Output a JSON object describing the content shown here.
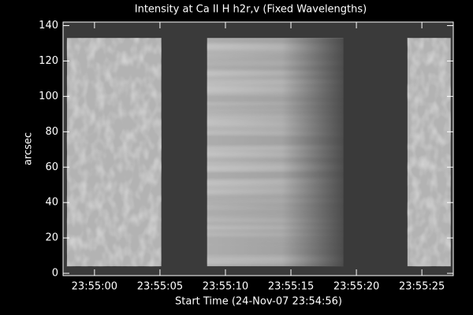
{
  "chart_data": {
    "type": "image",
    "title": "Intensity at Ca II H h2r,v (Fixed Wavelengths)",
    "xlabel": "Start Time (24-Nov-07 23:54:56)",
    "ylabel": "arcsec",
    "xlim": [
      1.6,
      31.4
    ],
    "xticks": [
      {
        "value": 4,
        "label": "23:55:00"
      },
      {
        "value": 9,
        "label": "23:55:05"
      },
      {
        "value": 14,
        "label": "23:55:10"
      },
      {
        "value": 19,
        "label": "23:55:15"
      },
      {
        "value": 24,
        "label": "23:55:20"
      },
      {
        "value": 29,
        "label": "23:55:25"
      }
    ],
    "ylim": [
      -1.3,
      142
    ],
    "yticks": [
      0,
      20,
      40,
      60,
      80,
      100,
      120,
      140
    ],
    "data_yrange": [
      4,
      133
    ],
    "segments": [
      {
        "x": [
          1.9,
          9.1
        ],
        "level": 0.7,
        "texture": "granular"
      },
      {
        "x": [
          12.6,
          23.0
        ],
        "level": 0.68,
        "texture": "striped"
      },
      {
        "x": [
          27.9,
          31.2
        ],
        "level": 0.7,
        "texture": "granular"
      }
    ]
  }
}
